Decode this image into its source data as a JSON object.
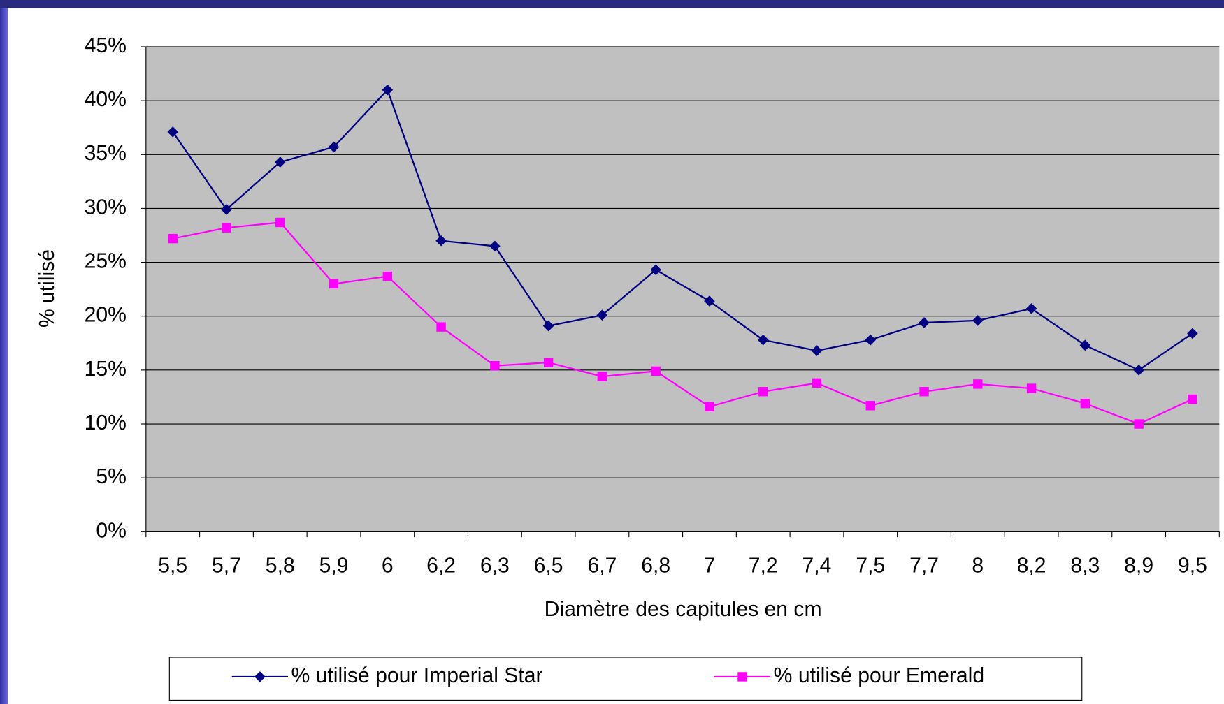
{
  "chart_data": {
    "type": "line",
    "ylabel": "% utilisé",
    "xlabel": "Diamètre des capitules en cm",
    "categories": [
      "5,5",
      "5,7",
      "5,8",
      "5,9",
      "6",
      "6,2",
      "6,3",
      "6,5",
      "6,7",
      "6,8",
      "7",
      "7,2",
      "7,4",
      "7,5",
      "7,7",
      "8",
      "8,2",
      "8,3",
      "8,9",
      "9,5"
    ],
    "series": [
      {
        "name": "% utilisé pour Imperial Star",
        "color": "#000080",
        "marker": "diamond",
        "values": [
          37.1,
          29.9,
          34.3,
          35.7,
          41.0,
          27.0,
          26.5,
          19.1,
          20.1,
          24.3,
          21.4,
          17.8,
          16.8,
          17.8,
          19.4,
          19.6,
          20.7,
          17.3,
          15.0,
          18.4
        ]
      },
      {
        "name": "% utilisé pour Emerald",
        "color": "#FF00FF",
        "marker": "square",
        "values": [
          27.2,
          28.2,
          28.7,
          23.0,
          23.7,
          19.0,
          15.4,
          15.7,
          14.4,
          14.9,
          11.6,
          13.0,
          13.8,
          11.7,
          13.0,
          13.7,
          13.3,
          11.9,
          10.0,
          12.3
        ]
      }
    ],
    "ylim": [
      0,
      45
    ],
    "yticks": [
      {
        "value": 0,
        "label": "0%"
      },
      {
        "value": 5,
        "label": "5%"
      },
      {
        "value": 10,
        "label": "10%"
      },
      {
        "value": 15,
        "label": "15%"
      },
      {
        "value": 20,
        "label": "20%"
      },
      {
        "value": 25,
        "label": "25%"
      },
      {
        "value": 30,
        "label": "30%"
      },
      {
        "value": 35,
        "label": "35%"
      },
      {
        "value": 40,
        "label": "40%"
      },
      {
        "value": 45,
        "label": "45%"
      }
    ],
    "grid": true,
    "legend": "bottom"
  }
}
